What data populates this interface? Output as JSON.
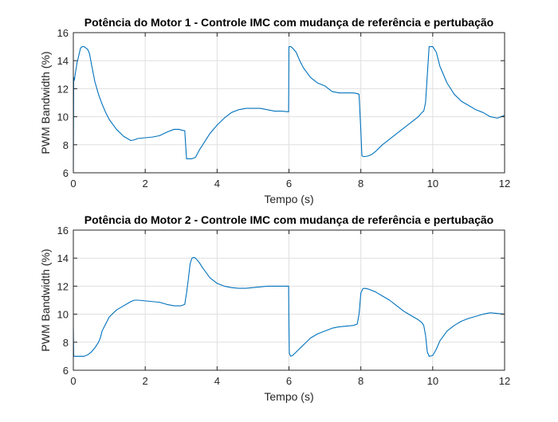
{
  "chart_data": [
    {
      "type": "line",
      "title": "Potência do Motor 1 - Controle IMC com mudança de referência e pertubação",
      "xlabel": "Tempo (s)",
      "ylabel": "PWM Bandwidth (%)",
      "xlim": [
        0,
        12
      ],
      "ylim": [
        6,
        16
      ],
      "xticks": [
        "0",
        "2",
        "4",
        "6",
        "8",
        "10",
        "12"
      ],
      "yticks": [
        "6",
        "8",
        "10",
        "12",
        "14",
        "16"
      ],
      "grid": true,
      "color": "#0072bd",
      "series": [
        {
          "x": [
            0,
            0.01,
            0.03,
            0.05,
            0.1,
            0.2,
            0.25,
            0.3,
            0.35,
            0.4,
            0.45,
            0.5,
            0.6,
            0.7,
            0.8,
            0.9,
            1.0,
            1.2,
            1.4,
            1.6,
            1.7,
            1.8,
            2.0,
            2.2,
            2.4,
            2.6,
            2.8,
            2.95,
            3.0,
            3.1,
            3.15,
            3.2,
            3.3,
            3.4,
            3.5,
            3.6,
            3.8,
            4.0,
            4.2,
            4.4,
            4.6,
            4.8,
            5.0,
            5.2,
            5.4,
            5.6,
            5.8,
            5.99,
            6.0,
            6.01,
            6.05,
            6.1,
            6.2,
            6.3,
            6.4,
            6.6,
            6.8,
            7.0,
            7.2,
            7.4,
            7.6,
            7.8,
            7.9,
            7.95,
            8.0,
            8.03,
            8.1,
            8.2,
            8.3,
            8.4,
            8.6,
            8.8,
            9.0,
            9.2,
            9.4,
            9.6,
            9.7,
            9.75,
            9.8,
            9.85,
            9.9,
            9.95,
            10.0,
            10.1,
            10.2,
            10.4,
            10.6,
            10.8,
            11.0,
            11.2,
            11.4,
            11.6,
            11.8,
            12.0
          ],
          "y": [
            6.1,
            12.8,
            12.6,
            13.0,
            13.8,
            14.9,
            15.0,
            15.0,
            14.9,
            14.8,
            14.5,
            13.8,
            12.5,
            11.6,
            10.9,
            10.3,
            9.8,
            9.1,
            8.6,
            8.3,
            8.35,
            8.45,
            8.5,
            8.55,
            8.65,
            8.9,
            9.1,
            9.1,
            9.05,
            9.0,
            7.0,
            7.0,
            7.0,
            7.1,
            7.6,
            8.0,
            8.8,
            9.4,
            9.9,
            10.3,
            10.5,
            10.6,
            10.6,
            10.6,
            10.5,
            10.4,
            10.4,
            10.35,
            15.0,
            15.0,
            15.0,
            14.9,
            14.6,
            14.0,
            13.5,
            12.8,
            12.4,
            12.2,
            11.8,
            11.7,
            11.7,
            11.7,
            11.65,
            11.6,
            9.0,
            7.2,
            7.15,
            7.2,
            7.3,
            7.5,
            8.0,
            8.4,
            8.8,
            9.2,
            9.6,
            10.0,
            10.3,
            10.4,
            11.0,
            13.0,
            15.0,
            15.0,
            15.0,
            14.6,
            13.6,
            12.4,
            11.6,
            11.1,
            10.8,
            10.5,
            10.3,
            10.0,
            9.9,
            10.1
          ]
        }
      ]
    },
    {
      "type": "line",
      "title": "Potência do Motor 2 - Controle IMC com mudança de referência e pertubação",
      "xlabel": "Tempo (s)",
      "ylabel": "PWM Bandwidth (%)",
      "xlim": [
        0,
        12
      ],
      "ylim": [
        6,
        16
      ],
      "xticks": [
        "0",
        "2",
        "4",
        "6",
        "8",
        "10",
        "12"
      ],
      "yticks": [
        "6",
        "8",
        "10",
        "12",
        "14",
        "16"
      ],
      "grid": true,
      "color": "#0072bd",
      "series": [
        {
          "x": [
            0,
            0.01,
            0.3,
            0.4,
            0.5,
            0.6,
            0.7,
            0.75,
            0.8,
            0.9,
            1.0,
            1.2,
            1.4,
            1.6,
            1.7,
            1.8,
            2.0,
            2.2,
            2.4,
            2.6,
            2.8,
            3.0,
            3.1,
            3.15,
            3.2,
            3.25,
            3.3,
            3.35,
            3.4,
            3.5,
            3.6,
            3.8,
            4.0,
            4.2,
            4.4,
            4.6,
            4.8,
            5.0,
            5.2,
            5.4,
            5.6,
            5.8,
            5.99,
            6.0,
            6.01,
            6.05,
            6.1,
            6.2,
            6.4,
            6.6,
            6.8,
            7.0,
            7.2,
            7.4,
            7.6,
            7.8,
            7.9,
            7.95,
            8.0,
            8.05,
            8.1,
            8.2,
            8.4,
            8.6,
            8.8,
            9.0,
            9.2,
            9.4,
            9.6,
            9.7,
            9.75,
            9.8,
            9.85,
            9.9,
            10.0,
            10.1,
            10.2,
            10.4,
            10.6,
            10.8,
            11.0,
            11.2,
            11.4,
            11.6,
            11.8,
            12.0
          ],
          "y": [
            9.0,
            7.0,
            7.0,
            7.1,
            7.3,
            7.6,
            8.0,
            8.3,
            8.8,
            9.3,
            9.8,
            10.3,
            10.6,
            10.9,
            11.0,
            11.0,
            10.95,
            10.9,
            10.85,
            10.7,
            10.6,
            10.6,
            10.7,
            11.5,
            12.5,
            13.6,
            14.0,
            14.05,
            14.0,
            13.7,
            13.3,
            12.6,
            12.2,
            12.0,
            11.9,
            11.85,
            11.85,
            11.9,
            11.95,
            12.0,
            12.0,
            12.0,
            12.0,
            9.0,
            7.2,
            7.0,
            7.05,
            7.3,
            7.8,
            8.3,
            8.6,
            8.8,
            9.0,
            9.1,
            9.15,
            9.2,
            9.3,
            10.0,
            11.5,
            11.8,
            11.85,
            11.8,
            11.6,
            11.3,
            11.0,
            10.6,
            10.2,
            9.9,
            9.6,
            9.4,
            9.2,
            8.5,
            7.3,
            7.0,
            7.05,
            7.5,
            8.1,
            8.8,
            9.2,
            9.5,
            9.7,
            9.85,
            10.0,
            10.1,
            10.05,
            10.0
          ]
        }
      ]
    }
  ]
}
